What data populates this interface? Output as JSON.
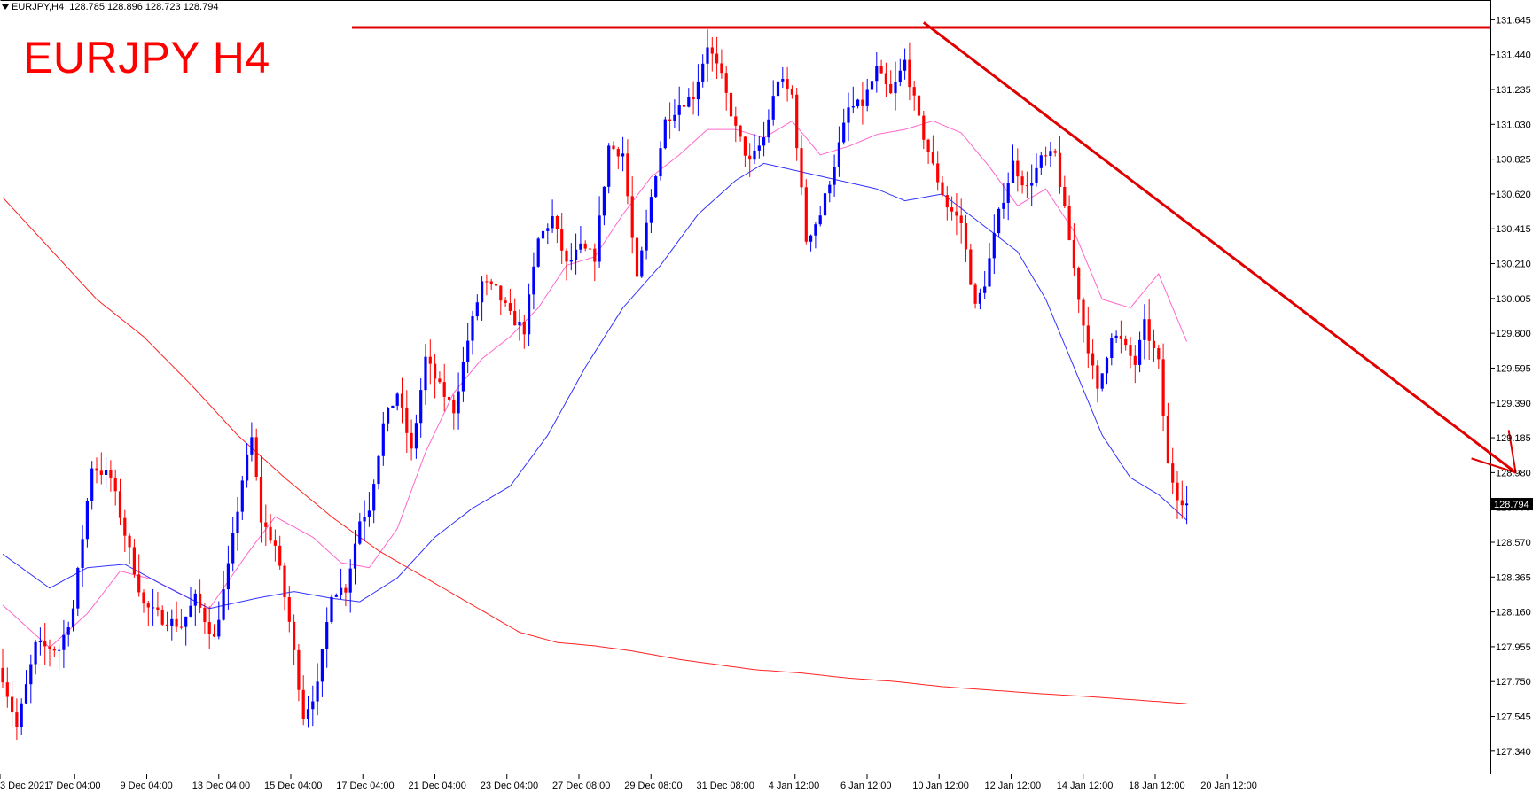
{
  "header": {
    "symbol_timeframe": "EURJPY,H4",
    "ohlc": "128.785 128.896 128.723 128.794"
  },
  "overlay_title": "EURJPY H4",
  "colors": {
    "bull": "#0000ff",
    "bear": "#ff0000",
    "ma_fast": "#ff66cc",
    "ma_mid": "#3333ff",
    "ma_slow": "#ff2222",
    "drawing": "#e00000",
    "price_tag_bg": "#000000",
    "price_tag_fg": "#ffffff"
  },
  "chart_data": {
    "type": "candlestick",
    "symbol": "EURJPY",
    "timeframe": "H4",
    "ylim": [
      127.24,
      131.72
    ],
    "y_ticks": [
      "131.645",
      "131.440",
      "131.235",
      "131.030",
      "130.825",
      "130.620",
      "130.415",
      "130.210",
      "130.005",
      "129.800",
      "129.595",
      "129.390",
      "129.185",
      "128.980",
      "128.775",
      "128.570",
      "128.365",
      "128.160",
      "127.955",
      "127.750",
      "127.545",
      "127.340"
    ],
    "x_ticks": [
      "3 Dec 2021",
      "7 Dec 04:00",
      "9 Dec 04:00",
      "13 Dec 04:00",
      "15 Dec 04:00",
      "17 Dec 04:00",
      "21 Dec 04:00",
      "23 Dec 04:00",
      "27 Dec 08:00",
      "29 Dec 08:00",
      "31 Dec 08:00",
      "4 Jan 12:00",
      "6 Jan 12:00",
      "10 Jan 12:00",
      "12 Jan 12:00",
      "14 Jan 12:00",
      "18 Jan 12:00",
      "20 Jan 12:00"
    ],
    "current_price": "128.794",
    "anchors": [
      {
        "i": 0,
        "p": 127.78
      },
      {
        "i": 3,
        "p": 127.48
      },
      {
        "i": 7,
        "p": 127.96
      },
      {
        "i": 12,
        "p": 127.94
      },
      {
        "i": 15,
        "p": 128.18
      },
      {
        "i": 19,
        "p": 129.02
      },
      {
        "i": 23,
        "p": 128.95
      },
      {
        "i": 26,
        "p": 128.62
      },
      {
        "i": 30,
        "p": 128.2
      },
      {
        "i": 34,
        "p": 128.12
      },
      {
        "i": 38,
        "p": 128.08
      },
      {
        "i": 41,
        "p": 128.24
      },
      {
        "i": 45,
        "p": 128.0
      },
      {
        "i": 48,
        "p": 128.42
      },
      {
        "i": 51,
        "p": 128.94
      },
      {
        "i": 53,
        "p": 129.18
      },
      {
        "i": 55,
        "p": 128.7
      },
      {
        "i": 58,
        "p": 128.55
      },
      {
        "i": 61,
        "p": 128.1
      },
      {
        "i": 64,
        "p": 127.55
      },
      {
        "i": 67,
        "p": 127.72
      },
      {
        "i": 70,
        "p": 128.28
      },
      {
        "i": 73,
        "p": 128.3
      },
      {
        "i": 76,
        "p": 128.7
      },
      {
        "i": 78,
        "p": 128.78
      },
      {
        "i": 81,
        "p": 129.26
      },
      {
        "i": 84,
        "p": 129.45
      },
      {
        "i": 87,
        "p": 129.1
      },
      {
        "i": 90,
        "p": 129.65
      },
      {
        "i": 93,
        "p": 129.48
      },
      {
        "i": 96,
        "p": 129.35
      },
      {
        "i": 99,
        "p": 129.76
      },
      {
        "i": 102,
        "p": 130.1
      },
      {
        "i": 105,
        "p": 130.05
      },
      {
        "i": 108,
        "p": 129.9
      },
      {
        "i": 111,
        "p": 129.82
      },
      {
        "i": 114,
        "p": 130.35
      },
      {
        "i": 117,
        "p": 130.48
      },
      {
        "i": 120,
        "p": 130.2
      },
      {
        "i": 123,
        "p": 130.3
      },
      {
        "i": 126,
        "p": 130.25
      },
      {
        "i": 129,
        "p": 130.9
      },
      {
        "i": 132,
        "p": 130.86
      },
      {
        "i": 135,
        "p": 130.1
      },
      {
        "i": 138,
        "p": 130.6
      },
      {
        "i": 141,
        "p": 131.05
      },
      {
        "i": 144,
        "p": 131.15
      },
      {
        "i": 147,
        "p": 131.2
      },
      {
        "i": 150,
        "p": 131.5
      },
      {
        "i": 153,
        "p": 131.3
      },
      {
        "i": 156,
        "p": 131.0
      },
      {
        "i": 159,
        "p": 130.8
      },
      {
        "i": 162,
        "p": 130.95
      },
      {
        "i": 165,
        "p": 131.3
      },
      {
        "i": 168,
        "p": 131.2
      },
      {
        "i": 171,
        "p": 130.35
      },
      {
        "i": 174,
        "p": 130.5
      },
      {
        "i": 177,
        "p": 130.8
      },
      {
        "i": 180,
        "p": 131.12
      },
      {
        "i": 183,
        "p": 131.15
      },
      {
        "i": 186,
        "p": 131.35
      },
      {
        "i": 189,
        "p": 131.2
      },
      {
        "i": 192,
        "p": 131.4
      },
      {
        "i": 195,
        "p": 131.05
      },
      {
        "i": 198,
        "p": 130.78
      },
      {
        "i": 201,
        "p": 130.55
      },
      {
        "i": 204,
        "p": 130.45
      },
      {
        "i": 207,
        "p": 129.95
      },
      {
        "i": 209,
        "p": 130.1
      },
      {
        "i": 212,
        "p": 130.5
      },
      {
        "i": 215,
        "p": 130.8
      },
      {
        "i": 218,
        "p": 130.65
      },
      {
        "i": 221,
        "p": 130.82
      },
      {
        "i": 224,
        "p": 130.85
      },
      {
        "i": 227,
        "p": 130.35
      },
      {
        "i": 230,
        "p": 129.85
      },
      {
        "i": 233,
        "p": 129.45
      },
      {
        "i": 236,
        "p": 129.8
      },
      {
        "i": 238,
        "p": 129.75
      },
      {
        "i": 241,
        "p": 129.62
      },
      {
        "i": 243,
        "p": 129.85
      },
      {
        "i": 246,
        "p": 129.62
      },
      {
        "i": 248,
        "p": 129.02
      },
      {
        "i": 250,
        "p": 128.85
      },
      {
        "i": 252,
        "p": 128.794
      }
    ],
    "series": [
      {
        "name": "fast MA",
        "anchors": [
          {
            "i": 0,
            "p": 128.2
          },
          {
            "i": 10,
            "p": 127.95
          },
          {
            "i": 18,
            "p": 128.15
          },
          {
            "i": 25,
            "p": 128.4
          },
          {
            "i": 32,
            "p": 128.35
          },
          {
            "i": 44,
            "p": 128.18
          },
          {
            "i": 52,
            "p": 128.5
          },
          {
            "i": 58,
            "p": 128.72
          },
          {
            "i": 66,
            "p": 128.6
          },
          {
            "i": 72,
            "p": 128.45
          },
          {
            "i": 78,
            "p": 128.42
          },
          {
            "i": 84,
            "p": 128.65
          },
          {
            "i": 90,
            "p": 129.1
          },
          {
            "i": 96,
            "p": 129.45
          },
          {
            "i": 102,
            "p": 129.65
          },
          {
            "i": 108,
            "p": 129.78
          },
          {
            "i": 114,
            "p": 129.95
          },
          {
            "i": 120,
            "p": 130.2
          },
          {
            "i": 126,
            "p": 130.25
          },
          {
            "i": 132,
            "p": 130.5
          },
          {
            "i": 138,
            "p": 130.72
          },
          {
            "i": 144,
            "p": 130.85
          },
          {
            "i": 150,
            "p": 131.0
          },
          {
            "i": 156,
            "p": 131.0
          },
          {
            "i": 162,
            "p": 130.95
          },
          {
            "i": 168,
            "p": 131.05
          },
          {
            "i": 174,
            "p": 130.85
          },
          {
            "i": 180,
            "p": 130.9
          },
          {
            "i": 186,
            "p": 130.97
          },
          {
            "i": 192,
            "p": 131.0
          },
          {
            "i": 198,
            "p": 131.05
          },
          {
            "i": 204,
            "p": 130.98
          },
          {
            "i": 210,
            "p": 130.78
          },
          {
            "i": 216,
            "p": 130.55
          },
          {
            "i": 222,
            "p": 130.65
          },
          {
            "i": 228,
            "p": 130.4
          },
          {
            "i": 234,
            "p": 130.0
          },
          {
            "i": 240,
            "p": 129.95
          },
          {
            "i": 246,
            "p": 130.15
          },
          {
            "i": 252,
            "p": 129.75
          }
        ]
      },
      {
        "name": "mid MA",
        "anchors": [
          {
            "i": 0,
            "p": 128.5
          },
          {
            "i": 10,
            "p": 128.3
          },
          {
            "i": 18,
            "p": 128.42
          },
          {
            "i": 26,
            "p": 128.44
          },
          {
            "i": 34,
            "p": 128.32
          },
          {
            "i": 44,
            "p": 128.18
          },
          {
            "i": 54,
            "p": 128.24
          },
          {
            "i": 62,
            "p": 128.28
          },
          {
            "i": 70,
            "p": 128.24
          },
          {
            "i": 76,
            "p": 128.22
          },
          {
            "i": 84,
            "p": 128.36
          },
          {
            "i": 92,
            "p": 128.6
          },
          {
            "i": 100,
            "p": 128.77
          },
          {
            "i": 108,
            "p": 128.9
          },
          {
            "i": 116,
            "p": 129.2
          },
          {
            "i": 124,
            "p": 129.6
          },
          {
            "i": 132,
            "p": 129.95
          },
          {
            "i": 140,
            "p": 130.2
          },
          {
            "i": 148,
            "p": 130.5
          },
          {
            "i": 156,
            "p": 130.7
          },
          {
            "i": 162,
            "p": 130.8
          },
          {
            "i": 170,
            "p": 130.75
          },
          {
            "i": 178,
            "p": 130.7
          },
          {
            "i": 186,
            "p": 130.65
          },
          {
            "i": 192,
            "p": 130.58
          },
          {
            "i": 200,
            "p": 130.62
          },
          {
            "i": 208,
            "p": 130.45
          },
          {
            "i": 216,
            "p": 130.28
          },
          {
            "i": 222,
            "p": 130.0
          },
          {
            "i": 228,
            "p": 129.6
          },
          {
            "i": 234,
            "p": 129.2
          },
          {
            "i": 240,
            "p": 128.95
          },
          {
            "i": 246,
            "p": 128.85
          },
          {
            "i": 252,
            "p": 128.7
          }
        ]
      },
      {
        "name": "slow MA",
        "anchors": [
          {
            "i": 0,
            "p": 130.6
          },
          {
            "i": 10,
            "p": 130.3
          },
          {
            "i": 20,
            "p": 130.0
          },
          {
            "i": 30,
            "p": 129.78
          },
          {
            "i": 40,
            "p": 129.5
          },
          {
            "i": 50,
            "p": 129.2
          },
          {
            "i": 60,
            "p": 128.95
          },
          {
            "i": 70,
            "p": 128.72
          },
          {
            "i": 80,
            "p": 128.52
          },
          {
            "i": 90,
            "p": 128.36
          },
          {
            "i": 100,
            "p": 128.2
          },
          {
            "i": 110,
            "p": 128.04
          },
          {
            "i": 118,
            "p": 127.98
          },
          {
            "i": 126,
            "p": 127.96
          },
          {
            "i": 134,
            "p": 127.93
          },
          {
            "i": 144,
            "p": 127.88
          },
          {
            "i": 152,
            "p": 127.85
          },
          {
            "i": 160,
            "p": 127.82
          },
          {
            "i": 170,
            "p": 127.8
          },
          {
            "i": 180,
            "p": 127.77
          },
          {
            "i": 190,
            "p": 127.75
          },
          {
            "i": 200,
            "p": 127.72
          },
          {
            "i": 210,
            "p": 127.7
          },
          {
            "i": 220,
            "p": 127.68
          },
          {
            "i": 232,
            "p": 127.66
          },
          {
            "i": 242,
            "p": 127.64
          },
          {
            "i": 252,
            "p": 127.62
          }
        ]
      }
    ],
    "drawings": {
      "resistance_level": 131.6,
      "trend_line": {
        "from": {
          "i": 196,
          "p": 131.63
        },
        "to": {
          "i": 322,
          "p": 128.98
        }
      }
    },
    "grid": false,
    "legend": "none"
  }
}
